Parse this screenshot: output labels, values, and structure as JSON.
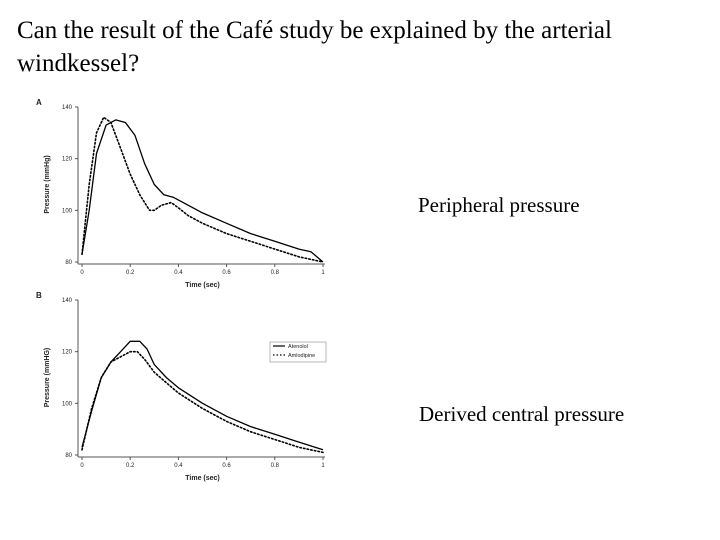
{
  "slide": {
    "title": "Can the result of the Café study be explained by the arterial windkessel?",
    "caption_a": "Peripheral pressure",
    "caption_b": "Derived central pressure"
  },
  "chart_data": [
    {
      "type": "line",
      "panel_label": "A",
      "xlabel": "Time (sec)",
      "ylabel": "Pressure (mmHg)",
      "xlim": [
        0,
        1
      ],
      "ylim": [
        80,
        140
      ],
      "x_ticks": [
        "0",
        "0.2",
        "0.4",
        "0.6",
        "0.8",
        "1"
      ],
      "y_ticks": [
        "80",
        "100",
        "120",
        "140"
      ],
      "grid": false,
      "series": [
        {
          "style": "solid",
          "color": "#000000",
          "x": [
            0,
            0.03,
            0.06,
            0.1,
            0.14,
            0.18,
            0.22,
            0.26,
            0.3,
            0.34,
            0.38,
            0.42,
            0.5,
            0.6,
            0.7,
            0.8,
            0.9,
            0.95,
            1.0
          ],
          "y": [
            83,
            100,
            122,
            133,
            135,
            134,
            129,
            118,
            110,
            106,
            105,
            103,
            99,
            95,
            91,
            88,
            85,
            84,
            80
          ]
        },
        {
          "style": "dotted",
          "color": "#000000",
          "x": [
            0,
            0.03,
            0.06,
            0.09,
            0.12,
            0.16,
            0.2,
            0.24,
            0.28,
            0.3,
            0.33,
            0.37,
            0.4,
            0.44,
            0.5,
            0.6,
            0.7,
            0.8,
            0.9,
            1.0
          ],
          "y": [
            83,
            110,
            130,
            136,
            134,
            124,
            114,
            106,
            100,
            100,
            102,
            103,
            101,
            98,
            95,
            91,
            88,
            85,
            82,
            80
          ]
        }
      ]
    },
    {
      "type": "line",
      "panel_label": "B",
      "xlabel": "Time (sec)",
      "ylabel": "Pressure (mmHG)",
      "xlim": [
        0,
        1
      ],
      "ylim": [
        80,
        140
      ],
      "x_ticks": [
        "0",
        "0.2",
        "0.4",
        "0.6",
        "0.8",
        "1"
      ],
      "y_ticks": [
        "80",
        "100",
        "120",
        "140"
      ],
      "grid": false,
      "legend_position": "right",
      "series": [
        {
          "name": "Atenolol",
          "style": "solid",
          "color": "#000000",
          "x": [
            0,
            0.04,
            0.08,
            0.12,
            0.16,
            0.2,
            0.24,
            0.27,
            0.3,
            0.35,
            0.4,
            0.5,
            0.6,
            0.7,
            0.8,
            0.9,
            1.0
          ],
          "y": [
            83,
            97,
            110,
            116,
            120,
            124,
            124,
            121,
            115,
            110,
            106,
            100,
            95,
            91,
            88,
            85,
            82
          ]
        },
        {
          "name": "Amlodipine",
          "style": "dotted",
          "color": "#000000",
          "x": [
            0,
            0.04,
            0.08,
            0.12,
            0.16,
            0.2,
            0.23,
            0.26,
            0.3,
            0.35,
            0.4,
            0.5,
            0.6,
            0.7,
            0.8,
            0.9,
            1.0
          ],
          "y": [
            82,
            98,
            110,
            116,
            118,
            120,
            120,
            117,
            112,
            108,
            104,
            98,
            93,
            89,
            86,
            83,
            81
          ]
        }
      ]
    }
  ]
}
